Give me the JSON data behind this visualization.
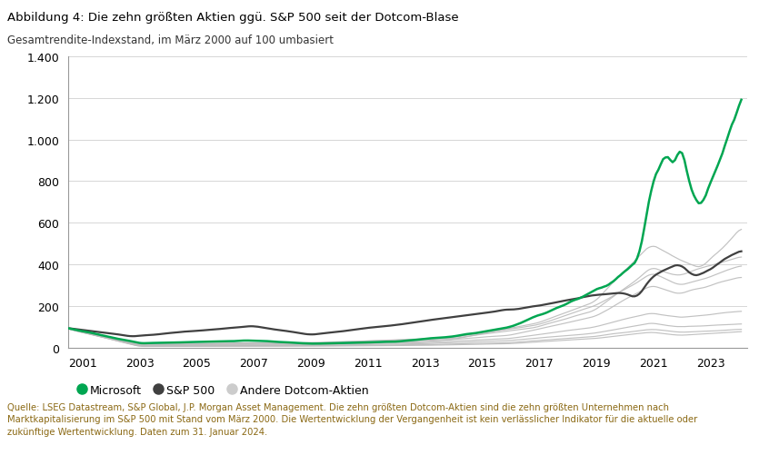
{
  "title": "Abbildung 4: Die zehn größten Aktien ggü. S&P 500 seit der Dotcom-Blase",
  "subtitle": "Gesamtrendite-Indexstand, im März 2000 auf 100 umbasiert",
  "ylim": [
    0,
    1400
  ],
  "yticks": [
    0,
    200,
    400,
    600,
    800,
    1000,
    1200,
    1400
  ],
  "xtick_years": [
    2001,
    2003,
    2005,
    2007,
    2009,
    2011,
    2013,
    2015,
    2017,
    2019,
    2021,
    2023
  ],
  "legend_labels": [
    "Microsoft",
    "S&P 500",
    "Andere Dotcom-Aktien"
  ],
  "microsoft_color": "#00A651",
  "sp500_color": "#404040",
  "other_color": "#BBBBBB",
  "footnote": "Quelle: LSEG Datastream, S&P Global, J.P. Morgan Asset Management. Die zehn größten Dotcom-Aktien sind die zehn größten Unternehmen nach\nMarktkapitalisierung im S&P 500 mit Stand vom März 2000. Die Wertentwicklung der Vergangenheit ist kein verlässlicher Indikator für die aktuelle oder\nzukünftige Wertentwicklung. Daten zum 31. Januar 2024.",
  "title_color": "#000000",
  "footnote_color": "#8B6914",
  "background_color": "#FFFFFF"
}
